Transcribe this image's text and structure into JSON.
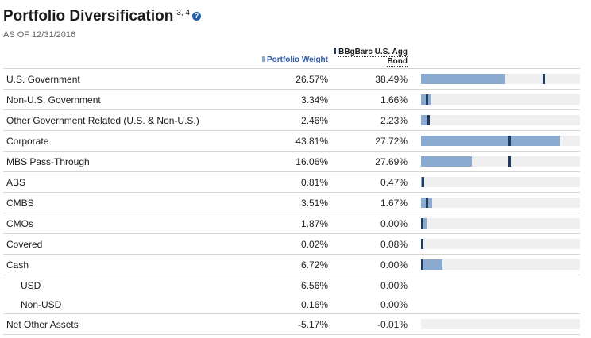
{
  "header": {
    "title": "Portfolio Diversification",
    "footnote": "3, 4",
    "help_icon": "?",
    "as_of": "AS OF 12/31/2016"
  },
  "columns": {
    "portfolio": "Portfolio Weight",
    "benchmark_line1": "BBgBarc U.S. Agg",
    "benchmark_line2": "Bond"
  },
  "colors": {
    "portfolio_bar": "#8aaad0",
    "benchmark_marker": "#1e3a5f",
    "track": "#efefef",
    "accent": "#2e5aa8"
  },
  "bar_max_percent": 50,
  "rows": [
    {
      "label": "U.S. Government",
      "portfolio": "26.57%",
      "benchmark": "38.49%",
      "pw": 26.57,
      "bm": 38.49,
      "bar": true,
      "sub": false
    },
    {
      "label": "Non-U.S. Government",
      "portfolio": "3.34%",
      "benchmark": "1.66%",
      "pw": 3.34,
      "bm": 1.66,
      "bar": true,
      "sub": false
    },
    {
      "label": "Other Government Related (U.S. & Non-U.S.)",
      "portfolio": "2.46%",
      "benchmark": "2.23%",
      "pw": 2.46,
      "bm": 2.23,
      "bar": true,
      "sub": false
    },
    {
      "label": "Corporate",
      "portfolio": "43.81%",
      "benchmark": "27.72%",
      "pw": 43.81,
      "bm": 27.72,
      "bar": true,
      "sub": false
    },
    {
      "label": "MBS Pass-Through",
      "portfolio": "16.06%",
      "benchmark": "27.69%",
      "pw": 16.06,
      "bm": 27.69,
      "bar": true,
      "sub": false
    },
    {
      "label": "ABS",
      "portfolio": "0.81%",
      "benchmark": "0.47%",
      "pw": 0.81,
      "bm": 0.47,
      "bar": true,
      "sub": false
    },
    {
      "label": "CMBS",
      "portfolio": "3.51%",
      "benchmark": "1.67%",
      "pw": 3.51,
      "bm": 1.67,
      "bar": true,
      "sub": false
    },
    {
      "label": "CMOs",
      "portfolio": "1.87%",
      "benchmark": "0.00%",
      "pw": 1.87,
      "bm": 0.0,
      "bar": true,
      "sub": false
    },
    {
      "label": "Covered",
      "portfolio": "0.02%",
      "benchmark": "0.08%",
      "pw": 0.02,
      "bm": 0.08,
      "bar": true,
      "sub": false
    },
    {
      "label": "Cash",
      "portfolio": "6.72%",
      "benchmark": "0.00%",
      "pw": 6.72,
      "bm": 0.0,
      "bar": true,
      "sub": false
    },
    {
      "label": "USD",
      "portfolio": "6.56%",
      "benchmark": "0.00%",
      "pw": 6.56,
      "bm": 0.0,
      "bar": false,
      "sub": true
    },
    {
      "label": "Non-USD",
      "portfolio": "0.16%",
      "benchmark": "0.00%",
      "pw": 0.16,
      "bm": 0.0,
      "bar": false,
      "sub": true
    },
    {
      "label": "Net Other Assets",
      "portfolio": "-5.17%",
      "benchmark": "-0.01%",
      "pw": -5.17,
      "bm": -0.01,
      "bar": true,
      "sub": false
    }
  ]
}
